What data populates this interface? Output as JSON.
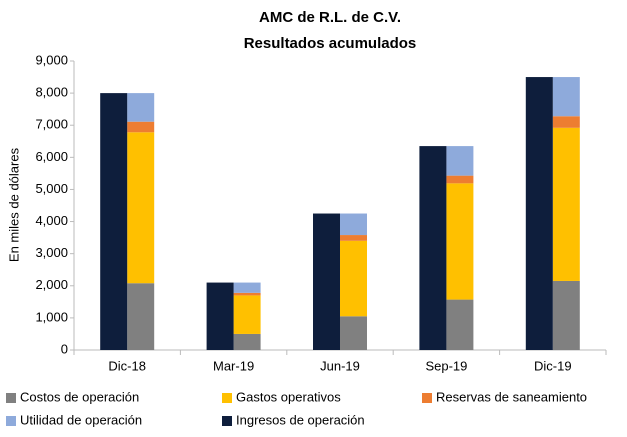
{
  "chart_data": {
    "type": "bar",
    "title": [
      "AMC de R.L. de C.V.",
      "Resultados acumulados"
    ],
    "y_label": "En miles de dólares",
    "categories": [
      "Dic-18",
      "Mar-19",
      "Jun-19",
      "Sep-19",
      "Dic-19"
    ],
    "series": [
      {
        "name": "Costos de operación",
        "color": "#808080",
        "stack": "right",
        "values": [
          2080,
          500,
          1050,
          1570,
          2150
        ]
      },
      {
        "name": "Gastos operativos",
        "color": "#ffc000",
        "stack": "right",
        "values": [
          4700,
          1200,
          2350,
          3620,
          4770
        ]
      },
      {
        "name": "Reservas de saneamiento",
        "color": "#ed7d31",
        "stack": "right",
        "values": [
          330,
          80,
          180,
          240,
          360
        ]
      },
      {
        "name": "Utilidad de operación",
        "color": "#8eaadb",
        "stack": "right",
        "values": [
          890,
          320,
          670,
          920,
          1220
        ]
      },
      {
        "name": "Ingresos de operación",
        "color": "#0e1e3c",
        "stack": "left",
        "values": [
          8000,
          2100,
          4250,
          6350,
          8500
        ]
      }
    ],
    "ylim": [
      0,
      9000
    ],
    "yticks": [
      0,
      {
        "value": 1000,
        "label": "1,000"
      },
      {
        "value": 2000,
        "label": "2,000"
      },
      {
        "value": 3000,
        "label": "3,000"
      },
      {
        "value": 4000,
        "label": "4,000"
      },
      {
        "value": 5000,
        "label": "5,000"
      },
      {
        "value": 6000,
        "label": "6,000"
      },
      {
        "value": 7000,
        "label": "7,000"
      },
      {
        "value": 8000,
        "label": "8,000"
      },
      {
        "value": 9000,
        "label": "9,000"
      }
    ],
    "grid": false,
    "legend": "bottom"
  }
}
